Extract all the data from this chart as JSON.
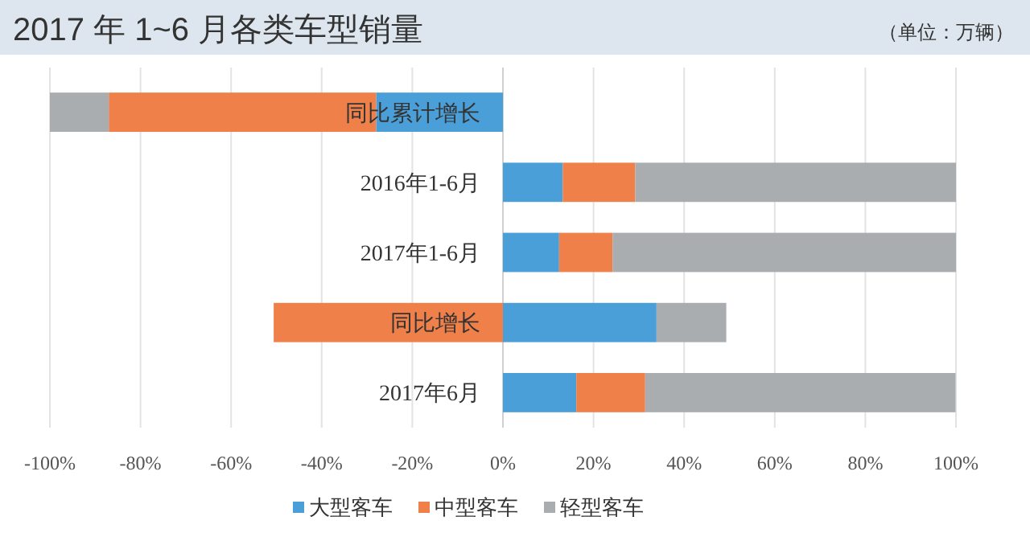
{
  "chart_data": {
    "type": "bar",
    "title": "2017 年 1~6 月各类车型销量",
    "annotations": [
      "（单位：万辆）"
    ],
    "categories": [
      "同比累计增长",
      "2016年1-6月",
      "2017年1-6月",
      "同比增长",
      "2017年6月"
    ],
    "orientation": "horizontal",
    "stacked": true,
    "series": [
      {
        "name": "大型客车",
        "color": "#4a9fd8",
        "values": [
          -28,
          13.2,
          12.4,
          33.9,
          16.2
        ]
      },
      {
        "name": "中型客车",
        "color": "#f0804a",
        "values": [
          -59,
          16.0,
          11.8,
          -50.6,
          15.2
        ]
      },
      {
        "name": "轻型客车",
        "color": "#a9adb0",
        "values": [
          -13,
          70.8,
          75.8,
          15.4,
          68.5
        ]
      }
    ],
    "xlim": [
      -100,
      100
    ],
    "xticks": [
      {
        "value": -100,
        "label": "-100%"
      },
      {
        "value": -80,
        "label": "-80%"
      },
      {
        "value": -60,
        "label": "-60%"
      },
      {
        "value": -40,
        "label": "-40%"
      },
      {
        "value": -20,
        "label": "-20%"
      },
      {
        "value": 0,
        "label": "0%"
      },
      {
        "value": 20,
        "label": "20%"
      },
      {
        "value": 40,
        "label": "40%"
      },
      {
        "value": 60,
        "label": "60%"
      },
      {
        "value": 80,
        "label": "80%"
      },
      {
        "value": 100,
        "label": "100%"
      }
    ],
    "grid": "x",
    "legend": "bottom"
  }
}
